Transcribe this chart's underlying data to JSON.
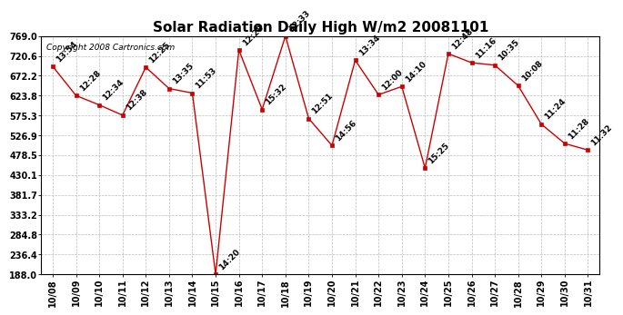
{
  "title": "Solar Radiation Daily High W/m2 20081101",
  "copyright": "Copyright 2008 Cartronics.com",
  "dates": [
    "10/08",
    "10/09",
    "10/10",
    "10/11",
    "10/12",
    "10/13",
    "10/14",
    "10/15",
    "10/16",
    "10/17",
    "10/18",
    "10/19",
    "10/20",
    "10/21",
    "10/22",
    "10/23",
    "10/24",
    "10/25",
    "10/26",
    "10/27",
    "10/28",
    "10/29",
    "10/30",
    "10/31"
  ],
  "values": [
    695,
    624,
    601,
    576,
    693,
    641,
    630,
    188,
    735,
    590,
    769,
    568,
    502,
    710,
    626,
    646,
    447,
    726,
    704,
    698,
    648,
    554,
    507,
    491
  ],
  "labels": [
    "13:54",
    "12:28",
    "12:34",
    "12:38",
    "12:25",
    "13:35",
    "11:53",
    "14:20",
    "12:28",
    "15:32",
    "12:33",
    "12:51",
    "14:56",
    "13:34",
    "12:00",
    "14:10",
    "15:25",
    "12:48",
    "11:16",
    "10:35",
    "10:08",
    "11:24",
    "11:28",
    "11:32"
  ],
  "ylim": [
    188.0,
    769.0
  ],
  "yticks": [
    188.0,
    236.4,
    284.8,
    333.2,
    381.7,
    430.1,
    478.5,
    526.9,
    575.3,
    623.8,
    672.2,
    720.6,
    769.0
  ],
  "line_color": "#cc0000",
  "marker_color": "#cc0000",
  "bg_color": "#ffffff",
  "grid_color": "#bbbbbb",
  "title_fontsize": 11,
  "label_fontsize": 6.5,
  "axis_fontsize": 7
}
